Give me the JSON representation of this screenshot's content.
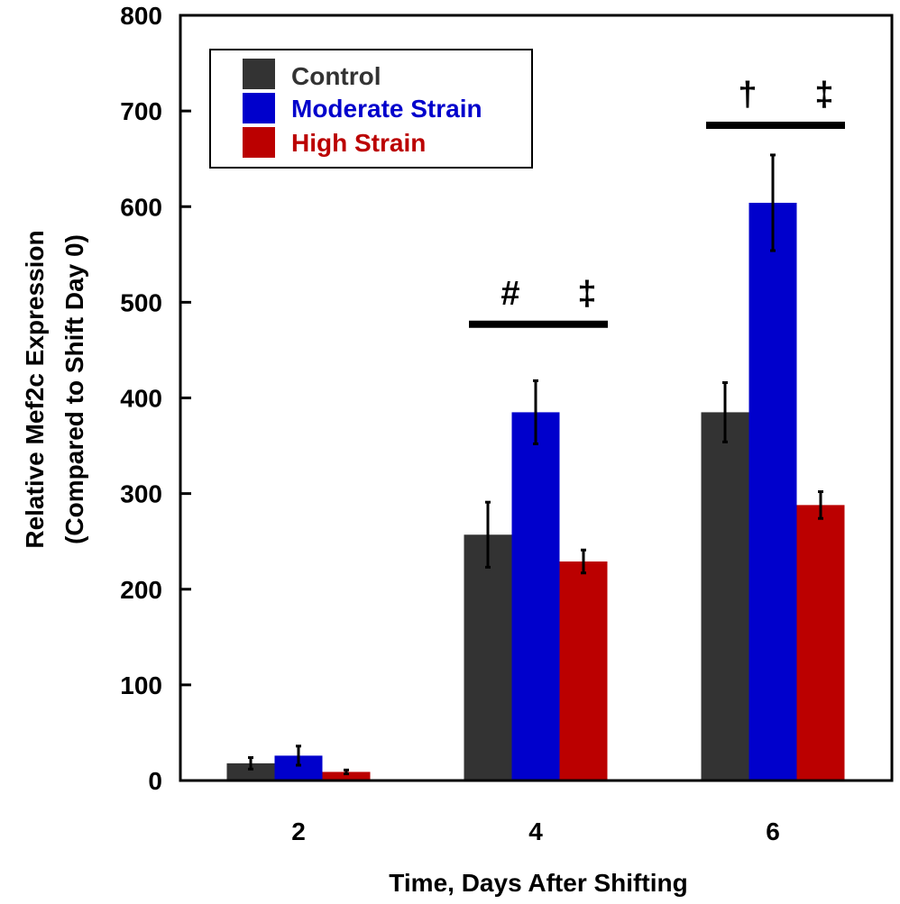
{
  "chart_data": {
    "type": "bar",
    "title": "",
    "xlabel": "Time, Days After Shifting",
    "ylabel": "Relative Mef2c Expression",
    "ylabel_sub": "(Compared to Shift Day 0)",
    "categories": [
      "2",
      "4",
      "6"
    ],
    "ylim": [
      0,
      800
    ],
    "yticks": [
      "0",
      "100",
      "200",
      "300",
      "400",
      "500",
      "600",
      "700",
      "800"
    ],
    "grid": false,
    "legend_position": "top-left",
    "series": [
      {
        "name": "Control",
        "color": "#333333",
        "values": [
          18,
          257,
          385
        ],
        "errors": [
          6,
          34,
          31
        ]
      },
      {
        "name": "Moderate Strain",
        "color": "#0000cc",
        "values": [
          26,
          385,
          604
        ],
        "errors": [
          10,
          33,
          50
        ]
      },
      {
        "name": "High Strain",
        "color": "#bb0000",
        "values": [
          9,
          229,
          288
        ],
        "errors": [
          2,
          12,
          14
        ]
      }
    ],
    "annotations": [
      {
        "category": "4",
        "left_symbol": "#",
        "right_symbol": "‡",
        "value": 477
      },
      {
        "category": "6",
        "left_symbol": "†",
        "right_symbol": "‡",
        "value": 685
      }
    ]
  }
}
